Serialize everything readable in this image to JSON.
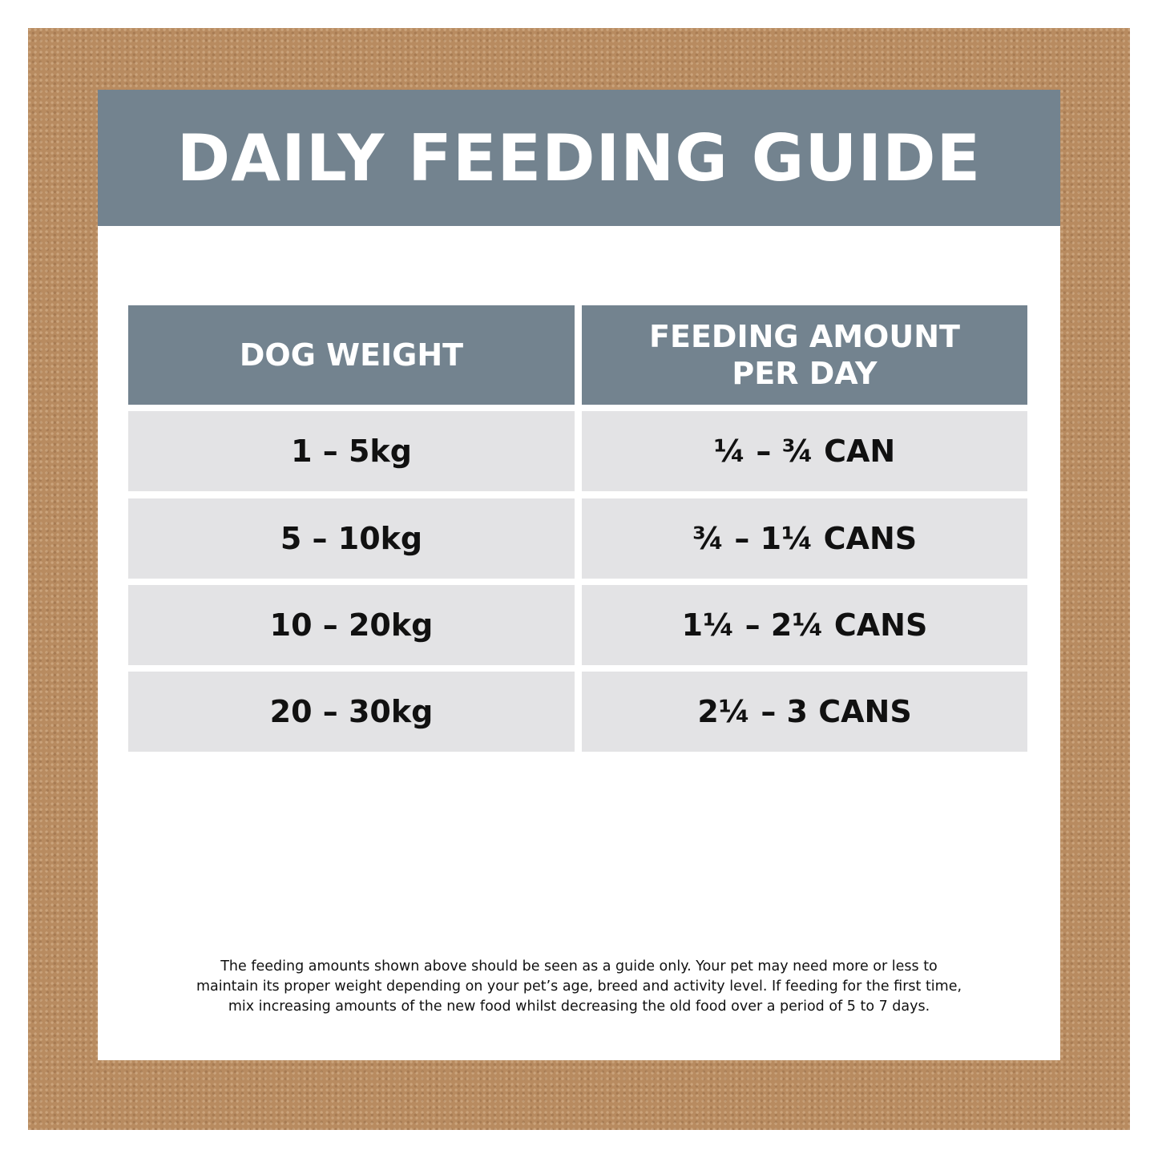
{
  "header": {
    "title": "DAILY FEEDING GUIDE"
  },
  "table": {
    "headers": [
      [
        "DOG WEIGHT"
      ],
      [
        "FEEDING AMOUNT",
        "PER DAY"
      ]
    ],
    "rows": [
      [
        "1 – 5kg",
        "¼ – ¾ CAN"
      ],
      [
        "5 – 10kg",
        "¾ – 1¼ CANS"
      ],
      [
        "10 – 20kg",
        "1¼ – 2¼ CANS"
      ],
      [
        "20 – 30kg",
        "2¼ – 3 CANS"
      ]
    ]
  },
  "footer": {
    "lines": [
      "The feeding amounts shown above should be seen as a guide only. Your pet may need more or less to",
      "maintain its proper weight depending on your pet’s age, breed and activity level. If feeding for the first time,",
      "mix increasing amounts of the new food whilst decreasing the old food over a period of 5 to 7 days."
    ]
  }
}
